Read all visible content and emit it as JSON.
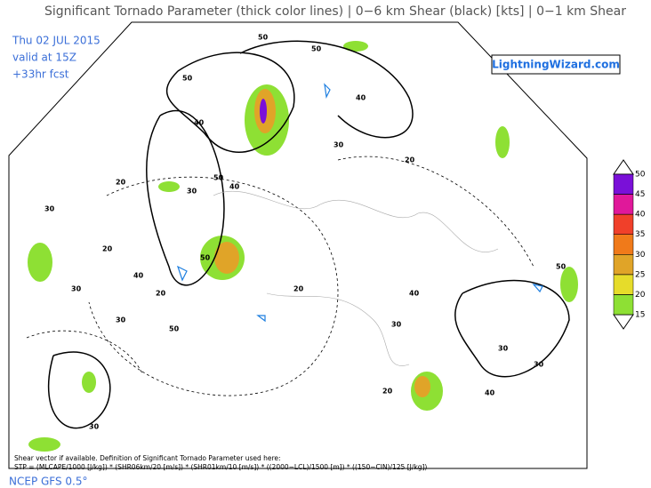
{
  "header": {
    "title": "Significant Tornado Parameter (thick color lines) | 0−6 km Shear (black) [kts] | 0−1 km Shear",
    "date": "Thu 02 JUL 2015",
    "valid": "valid at 15Z",
    "forecast": "+33hr fcst",
    "logo": "LightningWizard.com"
  },
  "colorbar": {
    "ticks": [
      15,
      20,
      25,
      30,
      35,
      40,
      45,
      50
    ],
    "colors": [
      "#8ee034",
      "#e6dc2a",
      "#e0a428",
      "#f07a1a",
      "#f0402a",
      "#e0189a",
      "#7a10d8"
    ]
  },
  "contour_labels": [
    "50",
    "50",
    "40",
    "50",
    "40",
    "30",
    "50",
    "40",
    "20",
    "30",
    "20",
    "30",
    "50",
    "50",
    "30",
    "20",
    "30",
    "40",
    "20",
    "30",
    "40",
    "50",
    "30",
    "20",
    "20",
    "30",
    "40",
    "30"
  ],
  "footer": {
    "note": "Shear vector if available. Definition of Significant Tornado Parameter used here:",
    "formula": "STP = (MLCAPE/1000 [J/kg]) * (SHR06km/20 [m/s]) * (SHR01km/10 [m/s]) * ((2000−LCL)/1500 [m]) * ((150−CIN)/125 [J/kg])",
    "model": "NCEP GFS 0.5°"
  }
}
